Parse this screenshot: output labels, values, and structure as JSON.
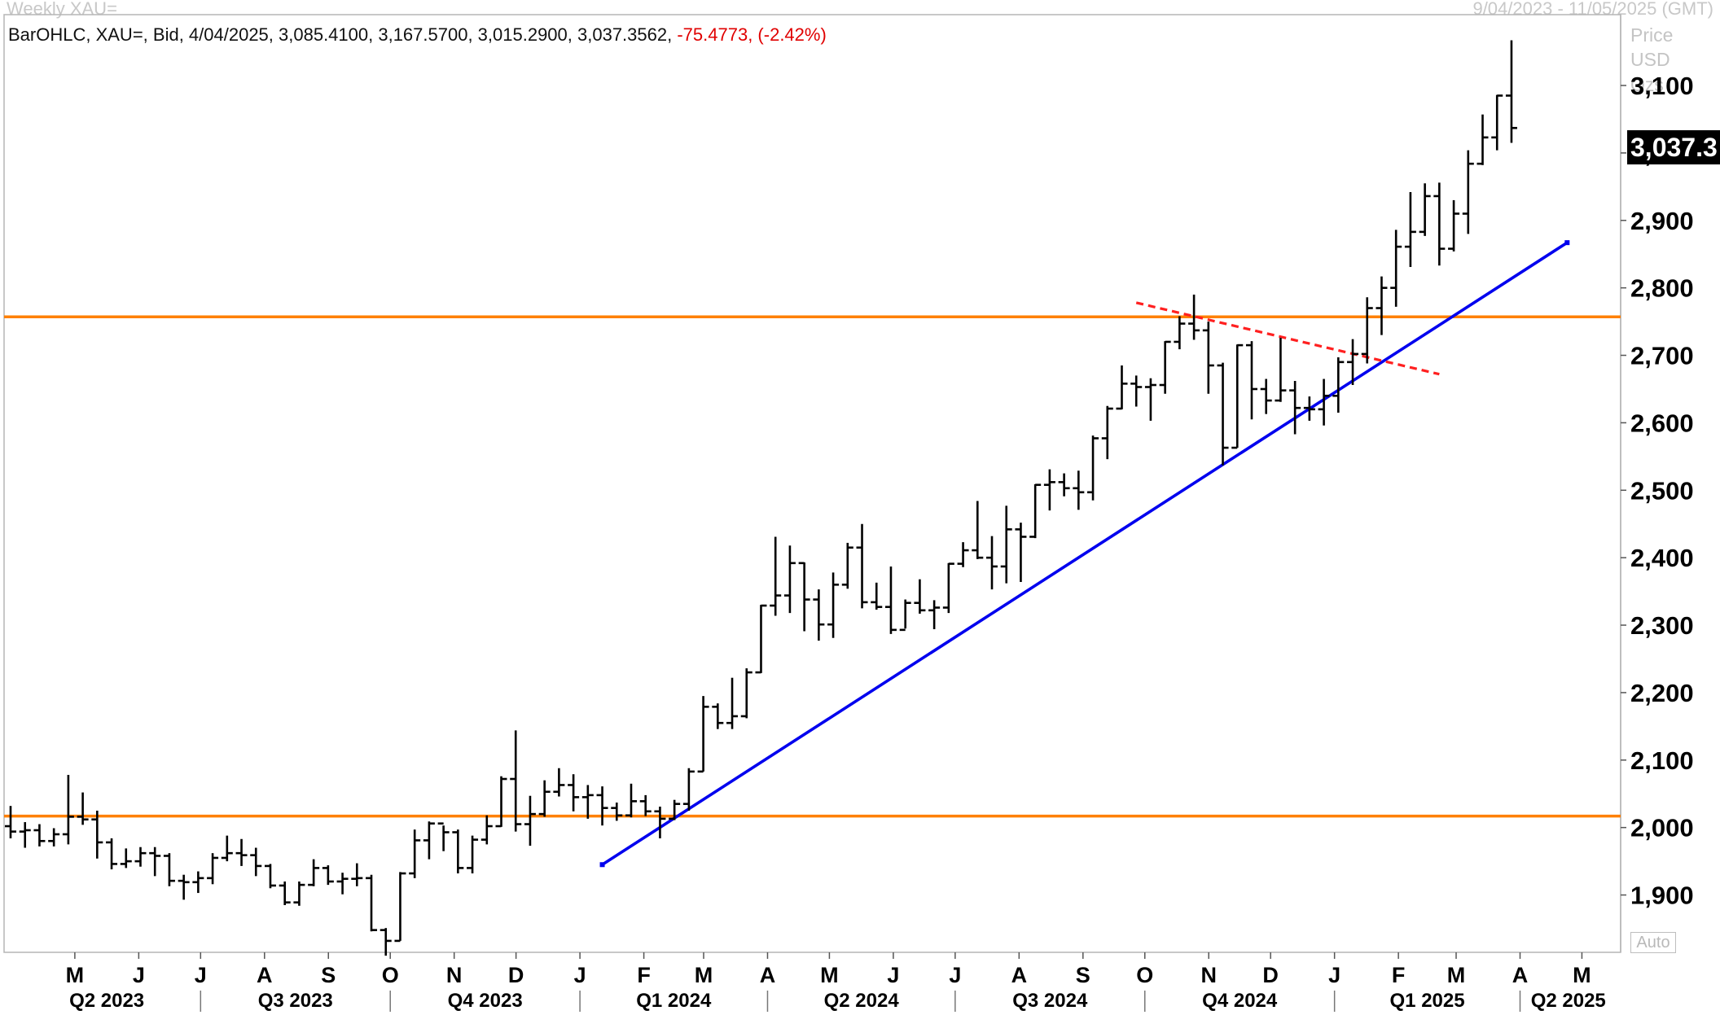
{
  "header": {
    "title": "Weekly XAU=",
    "date_range": "9/04/2023 - 11/05/2025 (GMT)"
  },
  "info_bar": {
    "text": "BarOHLC, XAU=, Bid, 4/04/2025, 3,085.4100, 3,167.5700, 3,015.2900, 3,037.3562,",
    "change": "-75.4773, (-2.42%)"
  },
  "price_axis": {
    "header_lines": [
      "Price",
      "USD",
      "Ozs"
    ],
    "current_price_label": "3,037.3",
    "auto_label": "Auto",
    "tick_labels": [
      "1,900",
      "2,000",
      "2,100",
      "2,200",
      "2,300",
      "2,400",
      "2,500",
      "2,600",
      "2,700",
      "2,800",
      "2,900",
      "3,000",
      "3,100"
    ]
  },
  "time_axis": {
    "month_labels": [
      "M",
      "J",
      "J",
      "A",
      "S",
      "O",
      "N",
      "D",
      "J",
      "F",
      "M",
      "A",
      "M",
      "J",
      "J",
      "A",
      "S",
      "O",
      "N",
      "D",
      "J",
      "F",
      "M",
      "A",
      "M"
    ],
    "quarter_labels": [
      "Q2 2023",
      "Q3 2023",
      "Q4 2023",
      "Q1 2024",
      "Q2 2024",
      "Q3 2024",
      "Q4 2024",
      "Q1 2025",
      "Q2 2025"
    ]
  },
  "colors": {
    "bars": "#000000",
    "support_resistance": "#ff8000",
    "trendline": "#0000ee",
    "downtrend": "#ff2020",
    "axis_text": "#000000",
    "change_text": "#e00000"
  },
  "chart_data": {
    "type": "ohlc",
    "title": "Weekly XAU=",
    "y_unit": "USD/Ozs",
    "ylim": [
      1815,
      3205
    ],
    "xlim": [
      "2023-04-03",
      "2025-05-19"
    ],
    "ohlc": [
      {
        "date": "2023-04-03",
        "open": 2002,
        "high": 2032,
        "low": 1984,
        "close": 1994
      },
      {
        "date": "2023-04-10",
        "open": 1994,
        "high": 2008,
        "low": 1970,
        "close": 1996
      },
      {
        "date": "2023-04-17",
        "open": 1996,
        "high": 2005,
        "low": 1972,
        "close": 1980
      },
      {
        "date": "2023-04-24",
        "open": 1980,
        "high": 1999,
        "low": 1972,
        "close": 1990
      },
      {
        "date": "2023-05-01",
        "open": 1990,
        "high": 2078,
        "low": 1975,
        "close": 2016
      },
      {
        "date": "2023-05-08",
        "open": 2016,
        "high": 2052,
        "low": 2004,
        "close": 2012
      },
      {
        "date": "2023-05-15",
        "open": 2012,
        "high": 2025,
        "low": 1954,
        "close": 1978
      },
      {
        "date": "2023-05-22",
        "open": 1978,
        "high": 1984,
        "low": 1938,
        "close": 1946
      },
      {
        "date": "2023-05-29",
        "open": 1946,
        "high": 1969,
        "low": 1940,
        "close": 1950
      },
      {
        "date": "2023-06-05",
        "open": 1950,
        "high": 1971,
        "low": 1942,
        "close": 1962
      },
      {
        "date": "2023-06-12",
        "open": 1962,
        "high": 1971,
        "low": 1928,
        "close": 1958
      },
      {
        "date": "2023-06-19",
        "open": 1958,
        "high": 1962,
        "low": 1913,
        "close": 1921
      },
      {
        "date": "2023-06-26",
        "open": 1921,
        "high": 1930,
        "low": 1893,
        "close": 1919
      },
      {
        "date": "2023-07-03",
        "open": 1919,
        "high": 1935,
        "low": 1903,
        "close": 1925
      },
      {
        "date": "2023-07-10",
        "open": 1925,
        "high": 1962,
        "low": 1916,
        "close": 1955
      },
      {
        "date": "2023-07-17",
        "open": 1955,
        "high": 1988,
        "low": 1950,
        "close": 1962
      },
      {
        "date": "2023-07-24",
        "open": 1962,
        "high": 1983,
        "low": 1943,
        "close": 1959
      },
      {
        "date": "2023-07-31",
        "open": 1959,
        "high": 1970,
        "low": 1928,
        "close": 1943
      },
      {
        "date": "2023-08-07",
        "open": 1943,
        "high": 1946,
        "low": 1910,
        "close": 1914
      },
      {
        "date": "2023-08-14",
        "open": 1914,
        "high": 1920,
        "low": 1885,
        "close": 1889
      },
      {
        "date": "2023-08-21",
        "open": 1889,
        "high": 1920,
        "low": 1884,
        "close": 1915
      },
      {
        "date": "2023-08-28",
        "open": 1915,
        "high": 1953,
        "low": 1913,
        "close": 1940
      },
      {
        "date": "2023-09-04",
        "open": 1940,
        "high": 1944,
        "low": 1915,
        "close": 1920
      },
      {
        "date": "2023-09-11",
        "open": 1920,
        "high": 1933,
        "low": 1901,
        "close": 1924
      },
      {
        "date": "2023-09-18",
        "open": 1924,
        "high": 1947,
        "low": 1913,
        "close": 1925
      },
      {
        "date": "2023-09-25",
        "open": 1925,
        "high": 1930,
        "low": 1846,
        "close": 1848
      },
      {
        "date": "2023-10-02",
        "open": 1848,
        "high": 1851,
        "low": 1810,
        "close": 1832
      },
      {
        "date": "2023-10-09",
        "open": 1832,
        "high": 1934,
        "low": 1832,
        "close": 1932
      },
      {
        "date": "2023-10-16",
        "open": 1932,
        "high": 1997,
        "low": 1925,
        "close": 1981
      },
      {
        "date": "2023-10-23",
        "open": 1981,
        "high": 2009,
        "low": 1953,
        "close": 2006
      },
      {
        "date": "2023-10-30",
        "open": 2006,
        "high": 2003,
        "low": 1965,
        "close": 1993
      },
      {
        "date": "2023-11-06",
        "open": 1993,
        "high": 1997,
        "low": 1932,
        "close": 1940
      },
      {
        "date": "2023-11-13",
        "open": 1940,
        "high": 1988,
        "low": 1932,
        "close": 1982
      },
      {
        "date": "2023-11-20",
        "open": 1982,
        "high": 2018,
        "low": 1975,
        "close": 2002
      },
      {
        "date": "2023-11-27",
        "open": 2002,
        "high": 2076,
        "low": 2001,
        "close": 2072
      },
      {
        "date": "2023-12-04",
        "open": 2072,
        "high": 2144,
        "low": 1994,
        "close": 2005
      },
      {
        "date": "2023-12-11",
        "open": 2005,
        "high": 2047,
        "low": 1973,
        "close": 2020
      },
      {
        "date": "2023-12-18",
        "open": 2020,
        "high": 2070,
        "low": 2016,
        "close": 2053
      },
      {
        "date": "2023-12-25",
        "open": 2053,
        "high": 2088,
        "low": 2046,
        "close": 2063
      },
      {
        "date": "2024-01-01",
        "open": 2063,
        "high": 2079,
        "low": 2024,
        "close": 2045
      },
      {
        "date": "2024-01-08",
        "open": 2045,
        "high": 2063,
        "low": 2013,
        "close": 2048
      },
      {
        "date": "2024-01-15",
        "open": 2048,
        "high": 2061,
        "low": 2003,
        "close": 2029
      },
      {
        "date": "2024-01-22",
        "open": 2029,
        "high": 2037,
        "low": 2010,
        "close": 2018
      },
      {
        "date": "2024-01-29",
        "open": 2018,
        "high": 2065,
        "low": 2015,
        "close": 2039
      },
      {
        "date": "2024-02-05",
        "open": 2039,
        "high": 2048,
        "low": 2017,
        "close": 2024
      },
      {
        "date": "2024-02-12",
        "open": 2024,
        "high": 2031,
        "low": 1984,
        "close": 2013
      },
      {
        "date": "2024-02-19",
        "open": 2013,
        "high": 2041,
        "low": 2011,
        "close": 2035
      },
      {
        "date": "2024-02-26",
        "open": 2035,
        "high": 2088,
        "low": 2025,
        "close": 2083
      },
      {
        "date": "2024-03-04",
        "open": 2083,
        "high": 2195,
        "low": 2083,
        "close": 2179
      },
      {
        "date": "2024-03-11",
        "open": 2179,
        "high": 2184,
        "low": 2146,
        "close": 2155
      },
      {
        "date": "2024-03-18",
        "open": 2155,
        "high": 2222,
        "low": 2146,
        "close": 2165
      },
      {
        "date": "2024-03-25",
        "open": 2165,
        "high": 2236,
        "low": 2162,
        "close": 2230
      },
      {
        "date": "2024-04-01",
        "open": 2230,
        "high": 2330,
        "low": 2229,
        "close": 2329
      },
      {
        "date": "2024-04-08",
        "open": 2329,
        "high": 2431,
        "low": 2314,
        "close": 2344
      },
      {
        "date": "2024-04-15",
        "open": 2344,
        "high": 2418,
        "low": 2318,
        "close": 2392
      },
      {
        "date": "2024-04-22",
        "open": 2392,
        "high": 2393,
        "low": 2291,
        "close": 2338
      },
      {
        "date": "2024-04-29",
        "open": 2338,
        "high": 2353,
        "low": 2277,
        "close": 2301
      },
      {
        "date": "2024-05-06",
        "open": 2301,
        "high": 2378,
        "low": 2281,
        "close": 2360
      },
      {
        "date": "2024-05-13",
        "open": 2360,
        "high": 2422,
        "low": 2354,
        "close": 2415
      },
      {
        "date": "2024-05-20",
        "open": 2415,
        "high": 2450,
        "low": 2325,
        "close": 2334
      },
      {
        "date": "2024-05-27",
        "open": 2334,
        "high": 2363,
        "low": 2323,
        "close": 2327
      },
      {
        "date": "2024-06-03",
        "open": 2327,
        "high": 2387,
        "low": 2287,
        "close": 2293
      },
      {
        "date": "2024-06-10",
        "open": 2293,
        "high": 2338,
        "low": 2295,
        "close": 2333
      },
      {
        "date": "2024-06-17",
        "open": 2333,
        "high": 2368,
        "low": 2317,
        "close": 2322
      },
      {
        "date": "2024-06-24",
        "open": 2322,
        "high": 2337,
        "low": 2294,
        "close": 2326
      },
      {
        "date": "2024-07-01",
        "open": 2326,
        "high": 2392,
        "low": 2318,
        "close": 2391
      },
      {
        "date": "2024-07-08",
        "open": 2391,
        "high": 2423,
        "low": 2386,
        "close": 2411
      },
      {
        "date": "2024-07-15",
        "open": 2411,
        "high": 2484,
        "low": 2398,
        "close": 2400
      },
      {
        "date": "2024-07-22",
        "open": 2400,
        "high": 2432,
        "low": 2353,
        "close": 2387
      },
      {
        "date": "2024-07-29",
        "open": 2387,
        "high": 2477,
        "low": 2362,
        "close": 2442
      },
      {
        "date": "2024-08-05",
        "open": 2442,
        "high": 2452,
        "low": 2364,
        "close": 2431
      },
      {
        "date": "2024-08-12",
        "open": 2431,
        "high": 2509,
        "low": 2429,
        "close": 2508
      },
      {
        "date": "2024-08-19",
        "open": 2508,
        "high": 2531,
        "low": 2470,
        "close": 2512
      },
      {
        "date": "2024-08-26",
        "open": 2512,
        "high": 2525,
        "low": 2491,
        "close": 2503
      },
      {
        "date": "2024-09-02",
        "open": 2503,
        "high": 2529,
        "low": 2471,
        "close": 2497
      },
      {
        "date": "2024-09-09",
        "open": 2497,
        "high": 2581,
        "low": 2485,
        "close": 2577
      },
      {
        "date": "2024-09-16",
        "open": 2577,
        "high": 2625,
        "low": 2546,
        "close": 2621
      },
      {
        "date": "2024-09-23",
        "open": 2621,
        "high": 2685,
        "low": 2620,
        "close": 2658
      },
      {
        "date": "2024-09-30",
        "open": 2658,
        "high": 2670,
        "low": 2624,
        "close": 2653
      },
      {
        "date": "2024-10-07",
        "open": 2653,
        "high": 2666,
        "low": 2603,
        "close": 2656
      },
      {
        "date": "2024-10-14",
        "open": 2656,
        "high": 2721,
        "low": 2643,
        "close": 2720
      },
      {
        "date": "2024-10-21",
        "open": 2720,
        "high": 2758,
        "low": 2709,
        "close": 2747
      },
      {
        "date": "2024-10-28",
        "open": 2747,
        "high": 2790,
        "low": 2723,
        "close": 2737
      },
      {
        "date": "2024-11-04",
        "open": 2737,
        "high": 2750,
        "low": 2643,
        "close": 2685
      },
      {
        "date": "2024-11-11",
        "open": 2685,
        "high": 2689,
        "low": 2537,
        "close": 2563
      },
      {
        "date": "2024-11-18",
        "open": 2563,
        "high": 2716,
        "low": 2563,
        "close": 2715
      },
      {
        "date": "2024-11-25",
        "open": 2715,
        "high": 2721,
        "low": 2605,
        "close": 2650
      },
      {
        "date": "2024-12-02",
        "open": 2650,
        "high": 2665,
        "low": 2613,
        "close": 2633
      },
      {
        "date": "2024-12-09",
        "open": 2633,
        "high": 2726,
        "low": 2631,
        "close": 2648
      },
      {
        "date": "2024-12-16",
        "open": 2648,
        "high": 2662,
        "low": 2583,
        "close": 2622
      },
      {
        "date": "2024-12-23",
        "open": 2622,
        "high": 2639,
        "low": 2603,
        "close": 2620
      },
      {
        "date": "2024-12-30",
        "open": 2620,
        "high": 2665,
        "low": 2596,
        "close": 2640
      },
      {
        "date": "2025-01-06",
        "open": 2640,
        "high": 2697,
        "low": 2615,
        "close": 2690
      },
      {
        "date": "2025-01-13",
        "open": 2690,
        "high": 2724,
        "low": 2656,
        "close": 2702
      },
      {
        "date": "2025-01-20",
        "open": 2702,
        "high": 2786,
        "low": 2688,
        "close": 2770
      },
      {
        "date": "2025-01-27",
        "open": 2770,
        "high": 2817,
        "low": 2730,
        "close": 2800
      },
      {
        "date": "2025-02-03",
        "open": 2800,
        "high": 2886,
        "low": 2772,
        "close": 2861
      },
      {
        "date": "2025-02-10",
        "open": 2861,
        "high": 2942,
        "low": 2831,
        "close": 2883
      },
      {
        "date": "2025-02-17",
        "open": 2883,
        "high": 2955,
        "low": 2877,
        "close": 2936
      },
      {
        "date": "2025-02-24",
        "open": 2936,
        "high": 2956,
        "low": 2833,
        "close": 2858
      },
      {
        "date": "2025-03-03",
        "open": 2858,
        "high": 2930,
        "low": 2854,
        "close": 2910
      },
      {
        "date": "2025-03-10",
        "open": 2910,
        "high": 3004,
        "low": 2880,
        "close": 2984
      },
      {
        "date": "2025-03-17",
        "open": 2984,
        "high": 3057,
        "low": 2982,
        "close": 3023
      },
      {
        "date": "2025-03-24",
        "open": 3023,
        "high": 3086,
        "low": 3004,
        "close": 3085
      },
      {
        "date": "2025-03-31",
        "open": 3085,
        "high": 3167,
        "low": 3015,
        "close": 3037
      }
    ],
    "horizontal_lines": [
      {
        "value": 2757,
        "color": "#ff8000"
      },
      {
        "value": 2017,
        "color": "#ff8000"
      }
    ],
    "trendlines": [
      {
        "style": "solid",
        "color": "#0000ee",
        "points": [
          {
            "date": "2024-01-15",
            "value": 1945
          },
          {
            "date": "2025-04-27",
            "value": 2867
          }
        ]
      },
      {
        "style": "dashed",
        "color": "#ff2020",
        "points": [
          {
            "date": "2024-09-30",
            "value": 2778
          },
          {
            "date": "2025-02-24",
            "value": 2672
          }
        ]
      }
    ],
    "y_ticks": [
      1900,
      2000,
      2100,
      2200,
      2300,
      2400,
      2500,
      2600,
      2700,
      2800,
      2900,
      3000,
      3100
    ],
    "grid": false,
    "legend": "none"
  }
}
